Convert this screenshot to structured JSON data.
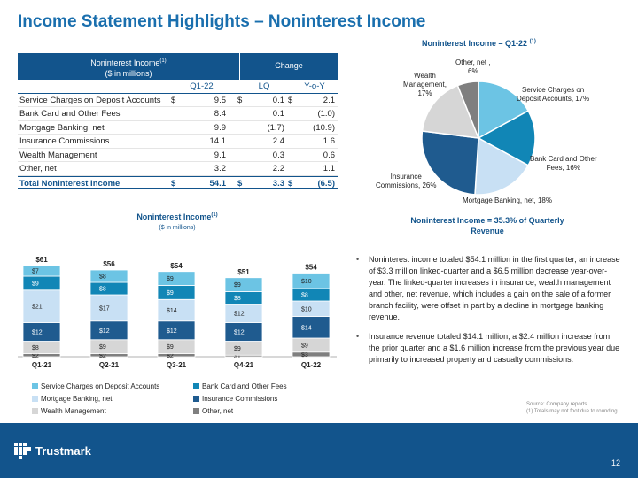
{
  "title": "Income Statement Highlights – Noninterest Income",
  "table": {
    "header_line1": "Noninterest Income",
    "header_sup": "(1)",
    "header_line2": "($ in millions)",
    "change_label": "Change",
    "columns": [
      "Q1-22",
      "LQ",
      "Y-o-Y"
    ],
    "rows": [
      {
        "label": "Service Charges on Deposit Accounts",
        "d1": "$",
        "v1": "9.5",
        "d2": "$",
        "v2": "0.1",
        "d3": "$",
        "v3": "2.1"
      },
      {
        "label": "Bank Card and Other Fees",
        "d1": "",
        "v1": "8.4",
        "d2": "",
        "v2": "0.1",
        "d3": "",
        "v3": "(1.0)"
      },
      {
        "label": "Mortgage Banking, net",
        "d1": "",
        "v1": "9.9",
        "d2": "",
        "v2": "(1.7)",
        "d3": "",
        "v3": "(10.9)"
      },
      {
        "label": "Insurance Commissions",
        "d1": "",
        "v1": "14.1",
        "d2": "",
        "v2": "2.4",
        "d3": "",
        "v3": "1.6"
      },
      {
        "label": "Wealth Management",
        "d1": "",
        "v1": "9.1",
        "d2": "",
        "v2": "0.3",
        "d3": "",
        "v3": "0.6"
      },
      {
        "label": "Other, net",
        "d1": "",
        "v1": "3.2",
        "d2": "",
        "v2": "2.2",
        "d3": "",
        "v3": "1.1"
      }
    ],
    "total": {
      "label": "Total Noninterest Income",
      "d1": "$",
      "v1": "54.1",
      "d2": "$",
      "v2": "3.3",
      "d3": "$",
      "v3": "(6.5)"
    }
  },
  "pie": {
    "title": "Noninterest Income – Q1-22",
    "title_sup": "(1)",
    "note_line1": "Noninterest Income = 35.3% of Quarterly",
    "note_line2": "Revenue",
    "labels": {
      "other": "Other, net ,\n6%",
      "service": "Service Charges on\nDeposit Accounts, 17%",
      "bank": "Bank Card and Other\nFees, 16%",
      "mortgage": "Mortgage Banking, net, 18%",
      "insurance": "Insurance\nCommissions, 26%",
      "wealth": "Wealth\nManagement,\n17%"
    }
  },
  "bar": {
    "title": "Noninterest Income",
    "title_sup": "(1)",
    "subtitle": "($ in millions)"
  },
  "legend": [
    "Service Charges on Deposit Accounts",
    "Bank Card and Other Fees",
    "Mortgage Banking, net",
    "Insurance Commissions",
    "Wealth Management",
    "Other, net"
  ],
  "colors": {
    "navy": "#12548c",
    "service": "#6cc4e4",
    "bank": "#1186b6",
    "mortgage": "#c8e0f4",
    "insurance": "#1f5b8f",
    "wealth": "#d6d6d6",
    "other": "#7f7f7f"
  },
  "chart_data": [
    {
      "type": "pie",
      "title": "Noninterest Income – Q1-22",
      "slices": [
        {
          "name": "Service Charges on Deposit Accounts",
          "value": 17
        },
        {
          "name": "Bank Card and Other Fees",
          "value": 16
        },
        {
          "name": "Mortgage Banking, net",
          "value": 18
        },
        {
          "name": "Insurance Commissions",
          "value": 26
        },
        {
          "name": "Wealth Management",
          "value": 17
        },
        {
          "name": "Other, net",
          "value": 6
        }
      ]
    },
    {
      "type": "bar",
      "stacked": true,
      "title": "Noninterest Income",
      "subtitle": "($ in millions)",
      "categories": [
        "Q1-21",
        "Q2-21",
        "Q3-21",
        "Q4-21",
        "Q1-22"
      ],
      "totals": [
        "$61",
        "$56",
        "$54",
        "$51",
        "$54"
      ],
      "total_values": [
        61,
        56,
        54,
        51,
        54
      ],
      "series": [
        {
          "name": "Other, net",
          "values": [
            2,
            2,
            2,
            1,
            3
          ],
          "labels": [
            "$2",
            "$2",
            "$2",
            "$1",
            "$3"
          ]
        },
        {
          "name": "Wealth Management",
          "values": [
            8,
            9,
            9,
            9,
            9
          ],
          "labels": [
            "$8",
            "$9",
            "$9",
            "$9",
            "$9"
          ]
        },
        {
          "name": "Insurance Commissions",
          "values": [
            12,
            12,
            12,
            12,
            14
          ],
          "labels": [
            "$12",
            "$12",
            "$12",
            "$12",
            "$14"
          ]
        },
        {
          "name": "Mortgage Banking, net",
          "values": [
            21,
            17,
            14,
            12,
            10
          ],
          "labels": [
            "$21",
            "$17",
            "$14",
            "$12",
            "$10"
          ]
        },
        {
          "name": "Bank Card and Other Fees",
          "values": [
            9,
            8,
            9,
            8,
            8
          ],
          "labels": [
            "$9",
            "$8",
            "$9",
            "$8",
            "$8"
          ]
        },
        {
          "name": "Service Charges on Deposit Accounts",
          "values": [
            7,
            8,
            9,
            9,
            10
          ],
          "labels": [
            "$7",
            "$8",
            "$9",
            "$9",
            "$10"
          ]
        }
      ]
    }
  ],
  "bullets": [
    "Noninterest income totaled $54.1 million in the first quarter, an increase of $3.3 million linked-quarter and a $6.5 million decrease year-over-year. The linked-quarter increases in insurance, wealth management and other, net revenue, which includes a gain on the sale of a former branch facility, were offset in part by a decline in mortgage banking revenue.",
    "Insurance revenue totaled $14.1 million, a $2.4 million increase from the prior quarter and a $1.6 million increase from the previous year due primarily to increased property and casualty commissions."
  ],
  "source": {
    "line1": "Source: Company reports",
    "line2": "(1) Totals may not foot due to rounding"
  },
  "footer": {
    "brand": "Trustmark",
    "page": "12"
  }
}
